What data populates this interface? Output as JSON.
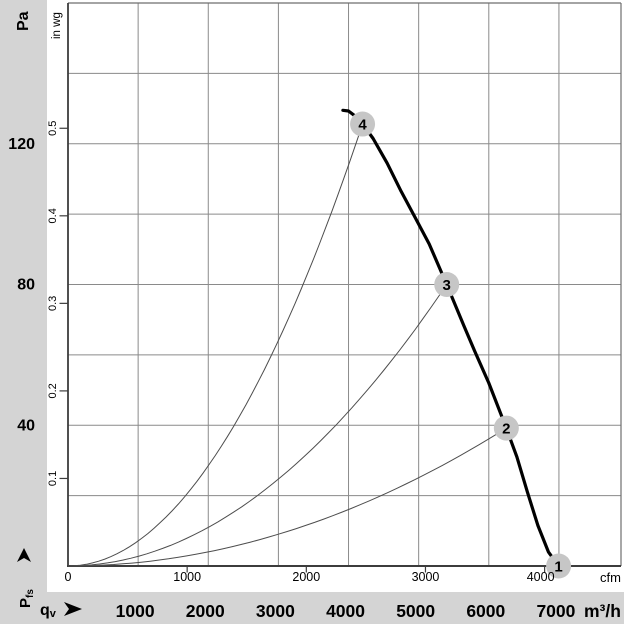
{
  "colors": {
    "band_bg": "#d4d4d4",
    "plot_bg": "#ffffff",
    "grid": "#8a8a8a",
    "axis": "#3c3c3c",
    "frame": "#6e6e6e",
    "fan_curve": "#000000",
    "system_curve": "#4d4d4d",
    "marker_fill": "#c6c6c6",
    "marker_text": "#ffffff"
  },
  "labels": {
    "y_primary_unit": "Pa",
    "y_secondary_unit": "in wg",
    "x_primary_unit": "m³/h",
    "x_secondary_unit": "cfm",
    "y_quantity_base": "P",
    "y_quantity_sub": "fs",
    "x_quantity_base": "q",
    "x_quantity_sub": "v"
  },
  "chart_data": {
    "type": "line",
    "x_axis": {
      "quantity": "qv",
      "primary_unit": "m³/h",
      "primary_ticks": [
        1000,
        2000,
        3000,
        4000,
        5000,
        6000,
        7000
      ],
      "secondary_unit": "cfm",
      "secondary_ticks": [
        0,
        1000,
        2000,
        3000,
        4000
      ],
      "cfm_to_m3h": 1.699,
      "range_m3h": [
        0,
        7885
      ]
    },
    "y_axis": {
      "quantity": "Pfs",
      "primary_unit": "Pa",
      "primary_ticks": [
        40,
        80,
        120
      ],
      "secondary_unit": "in wg",
      "secondary_ticks": [
        0.1,
        0.2,
        0.3,
        0.4,
        0.5
      ],
      "inwg_to_pa": 248.8,
      "range_pa": [
        0,
        160
      ]
    },
    "grid": {
      "x_step_m3h": 1000,
      "y_step_pa": 20
    },
    "fan_curve": {
      "name": "fan-characteristic",
      "points_m3h_pa": [
        [
          3920,
          129.5
        ],
        [
          4000,
          129.3
        ],
        [
          4100,
          127.8
        ],
        [
          4200,
          125.6
        ],
        [
          4350,
          121.5
        ],
        [
          4550,
          114.5
        ],
        [
          4750,
          106.5
        ],
        [
          4950,
          99.0
        ],
        [
          5150,
          91.5
        ],
        [
          5400,
          80.0
        ],
        [
          5650,
          68.0
        ],
        [
          5800,
          61.0
        ],
        [
          6000,
          52.0
        ],
        [
          6250,
          39.2
        ],
        [
          6400,
          31.0
        ],
        [
          6550,
          21.0
        ],
        [
          6700,
          11.5
        ],
        [
          6850,
          4.0
        ],
        [
          6995,
          0.0
        ]
      ]
    },
    "system_curves": [
      {
        "marker": "4",
        "Q_m3h": 4200,
        "P_pa": 125.6,
        "exponent": 2
      },
      {
        "marker": "3",
        "Q_m3h": 5400,
        "P_pa": 80.0,
        "exponent": 2
      },
      {
        "marker": "2",
        "Q_m3h": 6250,
        "P_pa": 39.2,
        "exponent": 2
      }
    ],
    "operating_points": [
      {
        "marker": "1",
        "Q_m3h": 6995,
        "P_pa": 0.0
      },
      {
        "marker": "2",
        "Q_m3h": 6250,
        "P_pa": 39.2
      },
      {
        "marker": "3",
        "Q_m3h": 5400,
        "P_pa": 80.0
      },
      {
        "marker": "4",
        "Q_m3h": 4200,
        "P_pa": 125.6
      }
    ]
  }
}
